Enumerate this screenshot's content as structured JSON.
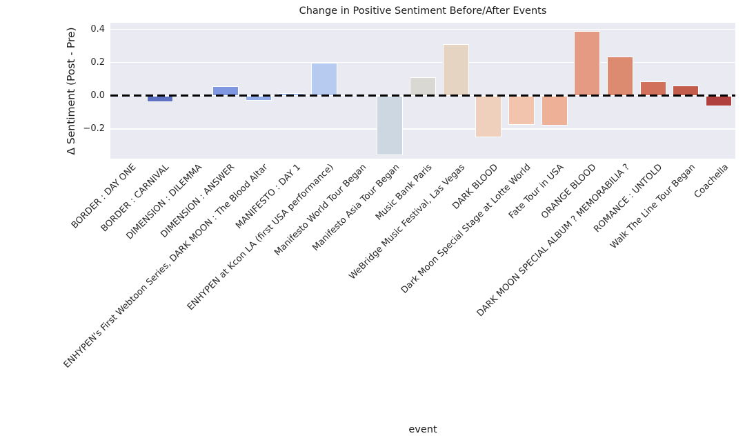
{
  "chart_data": {
    "type": "bar",
    "title": "Change in Positive Sentiment Before/After Events",
    "xlabel": "event",
    "ylabel": "Δ Sentiment (Post - Pre)",
    "categories": [
      "BORDER : DAY ONE",
      "BORDER : CARNIVAL",
      "DIMENSION : DILEMMA",
      "DIMENSION : ANSWER",
      "ENHYPEN's First Webtoon Series, DARK MOON : The Blood Altar",
      "MANIFESTO : DAY 1",
      "ENHYPEN at Kcon LA (first USA performance)",
      "Manifesto World Tour Began",
      "Manifesto Asia Tour Began",
      "Music Bank Paris",
      "WeBridge Music Festival, Las Vegas",
      "DARK BLOOD",
      "Dark Moon Special Stage at Lotte World",
      "Fate Tour in USA",
      "ORANGE BLOOD",
      "DARK MOON SPECIAL ALBUM ? MEMORABILIA ?",
      "ROMANCE : UNTOLD",
      "Walk The Line Tour Began",
      "Coachella"
    ],
    "values": [
      0.0,
      -0.04,
      0.0,
      0.055,
      -0.03,
      0.015,
      0.2,
      0.0,
      -0.36,
      0.11,
      0.31,
      -0.25,
      -0.175,
      -0.18,
      0.39,
      0.235,
      0.085,
      0.06,
      -0.065
    ],
    "bar_colors": [
      "#4d5db8",
      "#5d70c1",
      "#6f87d8",
      "#7e97e0",
      "#91ace9",
      "#a3bdf0",
      "#b7cbf1",
      "#c5d3ec",
      "#cdd7e2",
      "#d9d8d2",
      "#e6d4c2",
      "#efd0bc",
      "#f2c4ad",
      "#eeb096",
      "#e59b83",
      "#dc8a70",
      "#d1715b",
      "#c45c4c",
      "#af403d"
    ],
    "yticks": [
      0.4,
      0.2,
      0.0,
      -0.2
    ],
    "ytick_labels": [
      "0.4",
      "0.2",
      "0.0",
      "−0.2"
    ],
    "ylim": [
      -0.38,
      0.44
    ],
    "grid": true,
    "legend": "none",
    "plot_bg_color": "#eaeaf2",
    "grid_color": "#ffffff",
    "zero_line": {
      "y": 0.0,
      "style": "dashed",
      "color": "#000000"
    },
    "bar_edge_color": "#ffffff"
  }
}
